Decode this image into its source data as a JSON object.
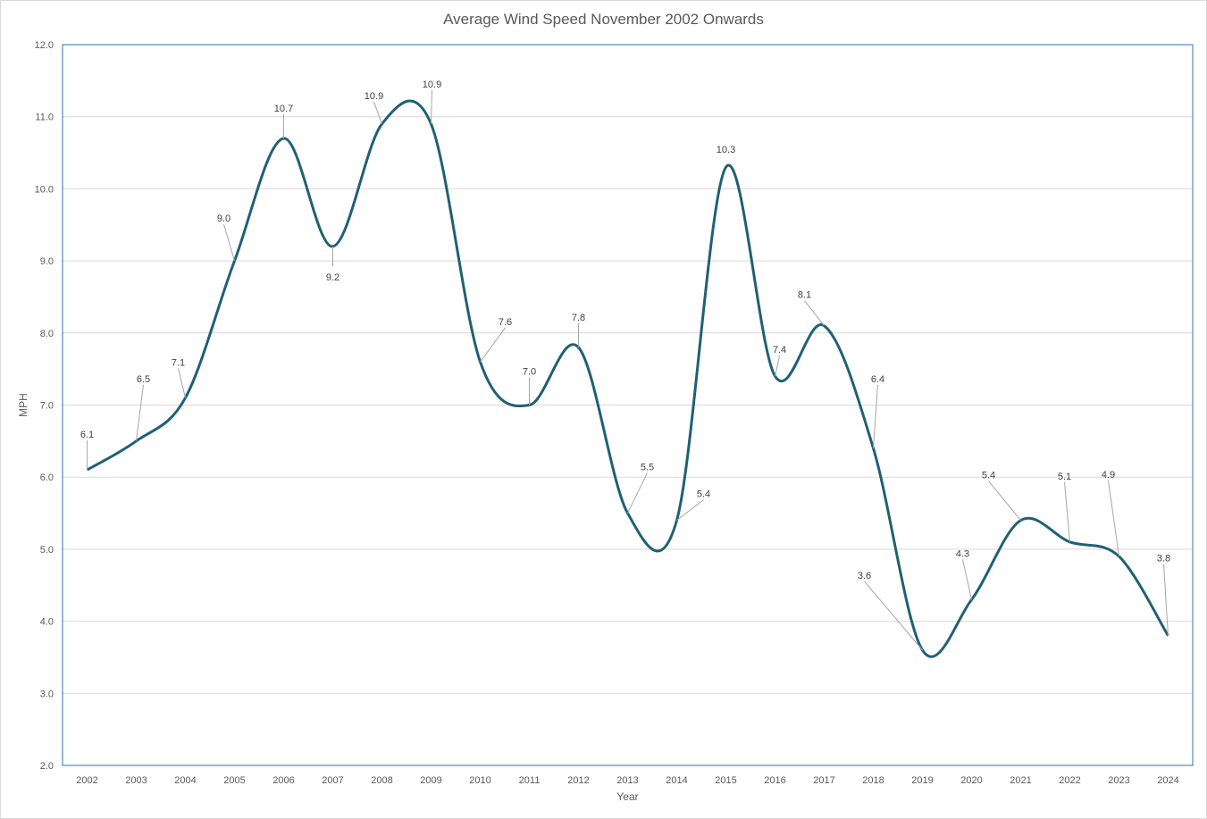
{
  "chart_data": {
    "type": "line",
    "title": "Average Wind Speed November 2002 Onwards",
    "xlabel": "Year",
    "ylabel": "MPH",
    "ylim": [
      2.0,
      12.0
    ],
    "y_ticks": [
      "2.0",
      "3.0",
      "4.0",
      "5.0",
      "6.0",
      "7.0",
      "8.0",
      "9.0",
      "10.0",
      "11.0",
      "12.0"
    ],
    "categories": [
      "2002",
      "2003",
      "2004",
      "2005",
      "2006",
      "2007",
      "2008",
      "2009",
      "2010",
      "2011",
      "2012",
      "2013",
      "2014",
      "2015",
      "2016",
      "2017",
      "2018",
      "2019",
      "2020",
      "2021",
      "2022",
      "2023",
      "2024"
    ],
    "values": [
      6.1,
      6.5,
      7.1,
      9.0,
      10.7,
      9.2,
      10.9,
      10.9,
      7.6,
      7.0,
      7.8,
      5.5,
      5.4,
      10.3,
      7.4,
      8.1,
      6.4,
      3.6,
      4.3,
      5.4,
      5.1,
      4.9,
      3.8
    ],
    "data_labels": [
      "6.1",
      "6.5",
      "7.1",
      "9.0",
      "10.7",
      "9.2",
      "10.9",
      "10.9",
      "7.6",
      "7.0",
      "7.8",
      "5.5",
      "5.4",
      "10.3",
      "7.4",
      "8.1",
      "6.4",
      "3.6",
      "4.3",
      "5.4",
      "5.1",
      "4.9",
      "3.8"
    ],
    "smooth": true,
    "grid": true,
    "legend": "none",
    "colors": {
      "line": "#1f6173",
      "grid": "#d9d9d9",
      "plot_border": "#2e75b6",
      "leader": "#a6a6a6",
      "text": "#595959"
    }
  }
}
